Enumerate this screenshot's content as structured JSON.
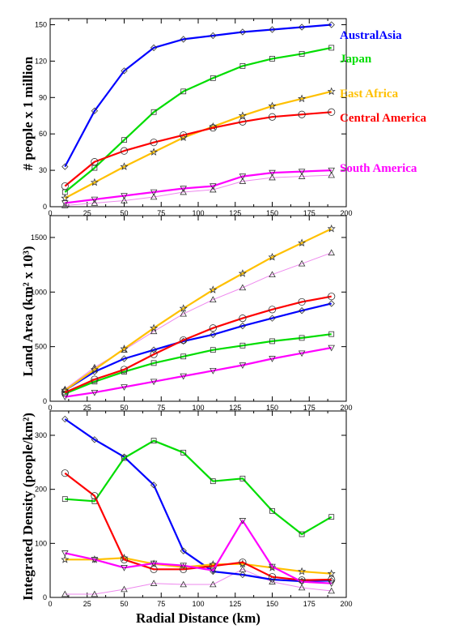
{
  "xlabel": "Radial Distance (km)",
  "legend": [
    {
      "label": "AustralAsia",
      "color": "#0000ff"
    },
    {
      "label": "Japan",
      "color": "#00dd00"
    },
    {
      "label": "East Africa",
      "color": "#ffc000"
    },
    {
      "label": "Central America",
      "color": "#ff0000"
    },
    {
      "label": "South America",
      "color": "#ff00ff"
    }
  ],
  "chart_data": [
    {
      "type": "line",
      "ylabel": "# people x 1 million",
      "xlim": [
        0,
        200
      ],
      "ylim": [
        0,
        155
      ],
      "xticks": [
        "0",
        "25",
        "50",
        "75",
        "100",
        "125",
        "150",
        "175",
        "200"
      ],
      "yticks": [
        "0",
        "30",
        "60",
        "90",
        "120",
        "150"
      ],
      "x": [
        10,
        30,
        50,
        70,
        90,
        110,
        130,
        150,
        170,
        190
      ],
      "series": [
        {
          "name": "AustralAsia",
          "color": "#0000ff",
          "marker": "diamond",
          "values": [
            33,
            79,
            112,
            131,
            138,
            141,
            144,
            146,
            148,
            150
          ]
        },
        {
          "name": "Japan",
          "color": "#00dd00",
          "marker": "square",
          "values": [
            12,
            32,
            55,
            78,
            95,
            106,
            116,
            122,
            126,
            131
          ]
        },
        {
          "name": "East Africa",
          "color": "#ffc000",
          "marker": "star",
          "values": [
            7,
            20,
            33,
            45,
            57,
            66,
            75,
            83,
            89,
            95
          ]
        },
        {
          "name": "Central America",
          "color": "#ff0000",
          "marker": "circle",
          "values": [
            17,
            37,
            46,
            53,
            59,
            65,
            70,
            74,
            76,
            78
          ]
        },
        {
          "name": "South America",
          "color": "#ff00ff",
          "marker": "down-triangle",
          "values": [
            3,
            6,
            9,
            12,
            15,
            17,
            25,
            28,
            29,
            30
          ]
        },
        {
          "color": "#ee88ee",
          "thin": true,
          "marker": "triangle",
          "values": [
            1,
            3,
            5,
            8,
            12,
            14,
            21,
            24,
            25,
            26
          ]
        }
      ]
    },
    {
      "type": "line",
      "ylabel": "Land Area (km² x 10³)",
      "xlim": [
        0,
        200
      ],
      "ylim": [
        0,
        1700
      ],
      "xticks": [
        "0",
        "25",
        "50",
        "75",
        "100",
        "125",
        "150",
        "175",
        "200"
      ],
      "yticks": [
        "0",
        "500",
        "1000",
        "1500"
      ],
      "x": [
        10,
        30,
        50,
        70,
        90,
        110,
        130,
        150,
        170,
        190
      ],
      "series": [
        {
          "name": "AustralAsia",
          "color": "#0000ff",
          "marker": "diamond",
          "values": [
            100,
            270,
            390,
            470,
            550,
            610,
            690,
            760,
            830,
            895
          ]
        },
        {
          "name": "Japan",
          "color": "#00dd00",
          "marker": "square",
          "values": [
            70,
            180,
            270,
            350,
            410,
            470,
            510,
            550,
            580,
            615
          ]
        },
        {
          "name": "East Africa",
          "color": "#ffc000",
          "marker": "star",
          "values": [
            100,
            290,
            480,
            670,
            850,
            1020,
            1170,
            1320,
            1450,
            1580
          ]
        },
        {
          "name": "Central America",
          "color": "#ff0000",
          "marker": "circle",
          "values": [
            80,
            200,
            290,
            430,
            560,
            670,
            760,
            840,
            910,
            960
          ]
        },
        {
          "name": "South America",
          "color": "#ff00ff",
          "marker": "down-triangle",
          "values": [
            40,
            80,
            130,
            180,
            230,
            280,
            330,
            390,
            440,
            490
          ]
        },
        {
          "color": "#ee88ee",
          "thin": true,
          "marker": "triangle",
          "values": [
            110,
            310,
            470,
            640,
            800,
            930,
            1040,
            1160,
            1260,
            1360
          ]
        }
      ]
    },
    {
      "type": "line",
      "ylabel": "Integrated Density (people/km²)",
      "xlim": [
        0,
        200
      ],
      "ylim": [
        0,
        345
      ],
      "xticks": [
        "0",
        "25",
        "50",
        "75",
        "100",
        "125",
        "150",
        "175",
        "200"
      ],
      "yticks": [
        "0",
        "100",
        "200",
        "300"
      ],
      "x": [
        10,
        30,
        50,
        70,
        90,
        110,
        130,
        150,
        170,
        190
      ],
      "series": [
        {
          "name": "AustralAsia",
          "color": "#0000ff",
          "marker": "diamond",
          "values": [
            330,
            292,
            260,
            208,
            86,
            48,
            42,
            33,
            30,
            31
          ]
        },
        {
          "name": "Japan",
          "color": "#00dd00",
          "marker": "square",
          "values": [
            182,
            178,
            258,
            290,
            268,
            215,
            220,
            160,
            117,
            149
          ]
        },
        {
          "name": "East Africa",
          "color": "#ffc000",
          "marker": "star",
          "values": [
            70,
            70,
            73,
            62,
            56,
            61,
            62,
            55,
            48,
            44
          ]
        },
        {
          "name": "Central America",
          "color": "#ff0000",
          "marker": "circle",
          "values": [
            230,
            188,
            70,
            52,
            52,
            58,
            65,
            38,
            32,
            33
          ]
        },
        {
          "name": "South America",
          "color": "#ff00ff",
          "marker": "down-triangle",
          "values": [
            82,
            70,
            55,
            63,
            59,
            50,
            142,
            57,
            29,
            26
          ]
        },
        {
          "color": "#ee88ee",
          "thin": true,
          "marker": "triangle",
          "values": [
            6,
            6,
            15,
            26,
            24,
            24,
            52,
            29,
            18,
            12
          ]
        }
      ]
    }
  ]
}
